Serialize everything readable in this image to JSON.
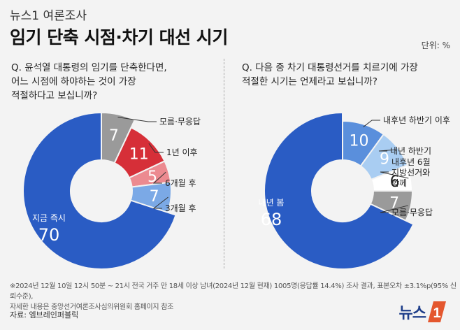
{
  "header": {
    "brand": "뉴스1 여론조사",
    "title": "임기 단축 시점·차기 대선 시기",
    "unit": "단위: %"
  },
  "chart_data": [
    {
      "type": "pie",
      "question": "Q. 윤석열 대통령의 임기를 단축한다면,\n   어느 시점에 하야하는 것이 가장\n   적절하다고 보십니까?",
      "categories": [
        "모름·무응답",
        "1년 이후",
        "6개월 후",
        "3개월 후",
        "지금 즉시"
      ],
      "values": [
        7,
        11,
        5,
        7,
        70
      ],
      "value_labels": [
        "7",
        "11",
        "5",
        "7",
        "70"
      ],
      "colors": [
        "#9a9a9a",
        "#d62f38",
        "#ec8a90",
        "#7ba9e6",
        "#2a5cc4"
      ]
    },
    {
      "type": "pie",
      "question": "Q. 다음 중 차기 대통령선거를 치르기에 가장\n   적절한 시기는 언제라고 보십니까?",
      "categories": [
        "내후년 하반기 이후",
        "내년 하반기",
        "내후년 6월\n지방선거와\n함께",
        "모름·무응답",
        "내년 봄"
      ],
      "values": [
        10,
        9,
        6,
        7,
        68
      ],
      "value_labels": [
        "10",
        "9",
        "6",
        "7",
        "68"
      ],
      "colors": [
        "#5a8fdc",
        "#a9cdf2",
        "#ffffff",
        "#9a9a9a",
        "#2a5cc4"
      ]
    }
  ],
  "footnote": "※2024년 12월 10일 12시 50분 ~ 21시 전국 거주 만 18세 이상 남녀(2024년 12월 현재) 1005명(응답률 14.4%) 조사 결과, 표본오차 ±3.1%p(95% 신뢰수준),\n   자세한 내용은 중앙선거여론조사심의위원회 홈페이지 참조",
  "source": "자료: 엠브레인퍼블릭",
  "logo": {
    "text": "뉴스",
    "mark": "1"
  }
}
